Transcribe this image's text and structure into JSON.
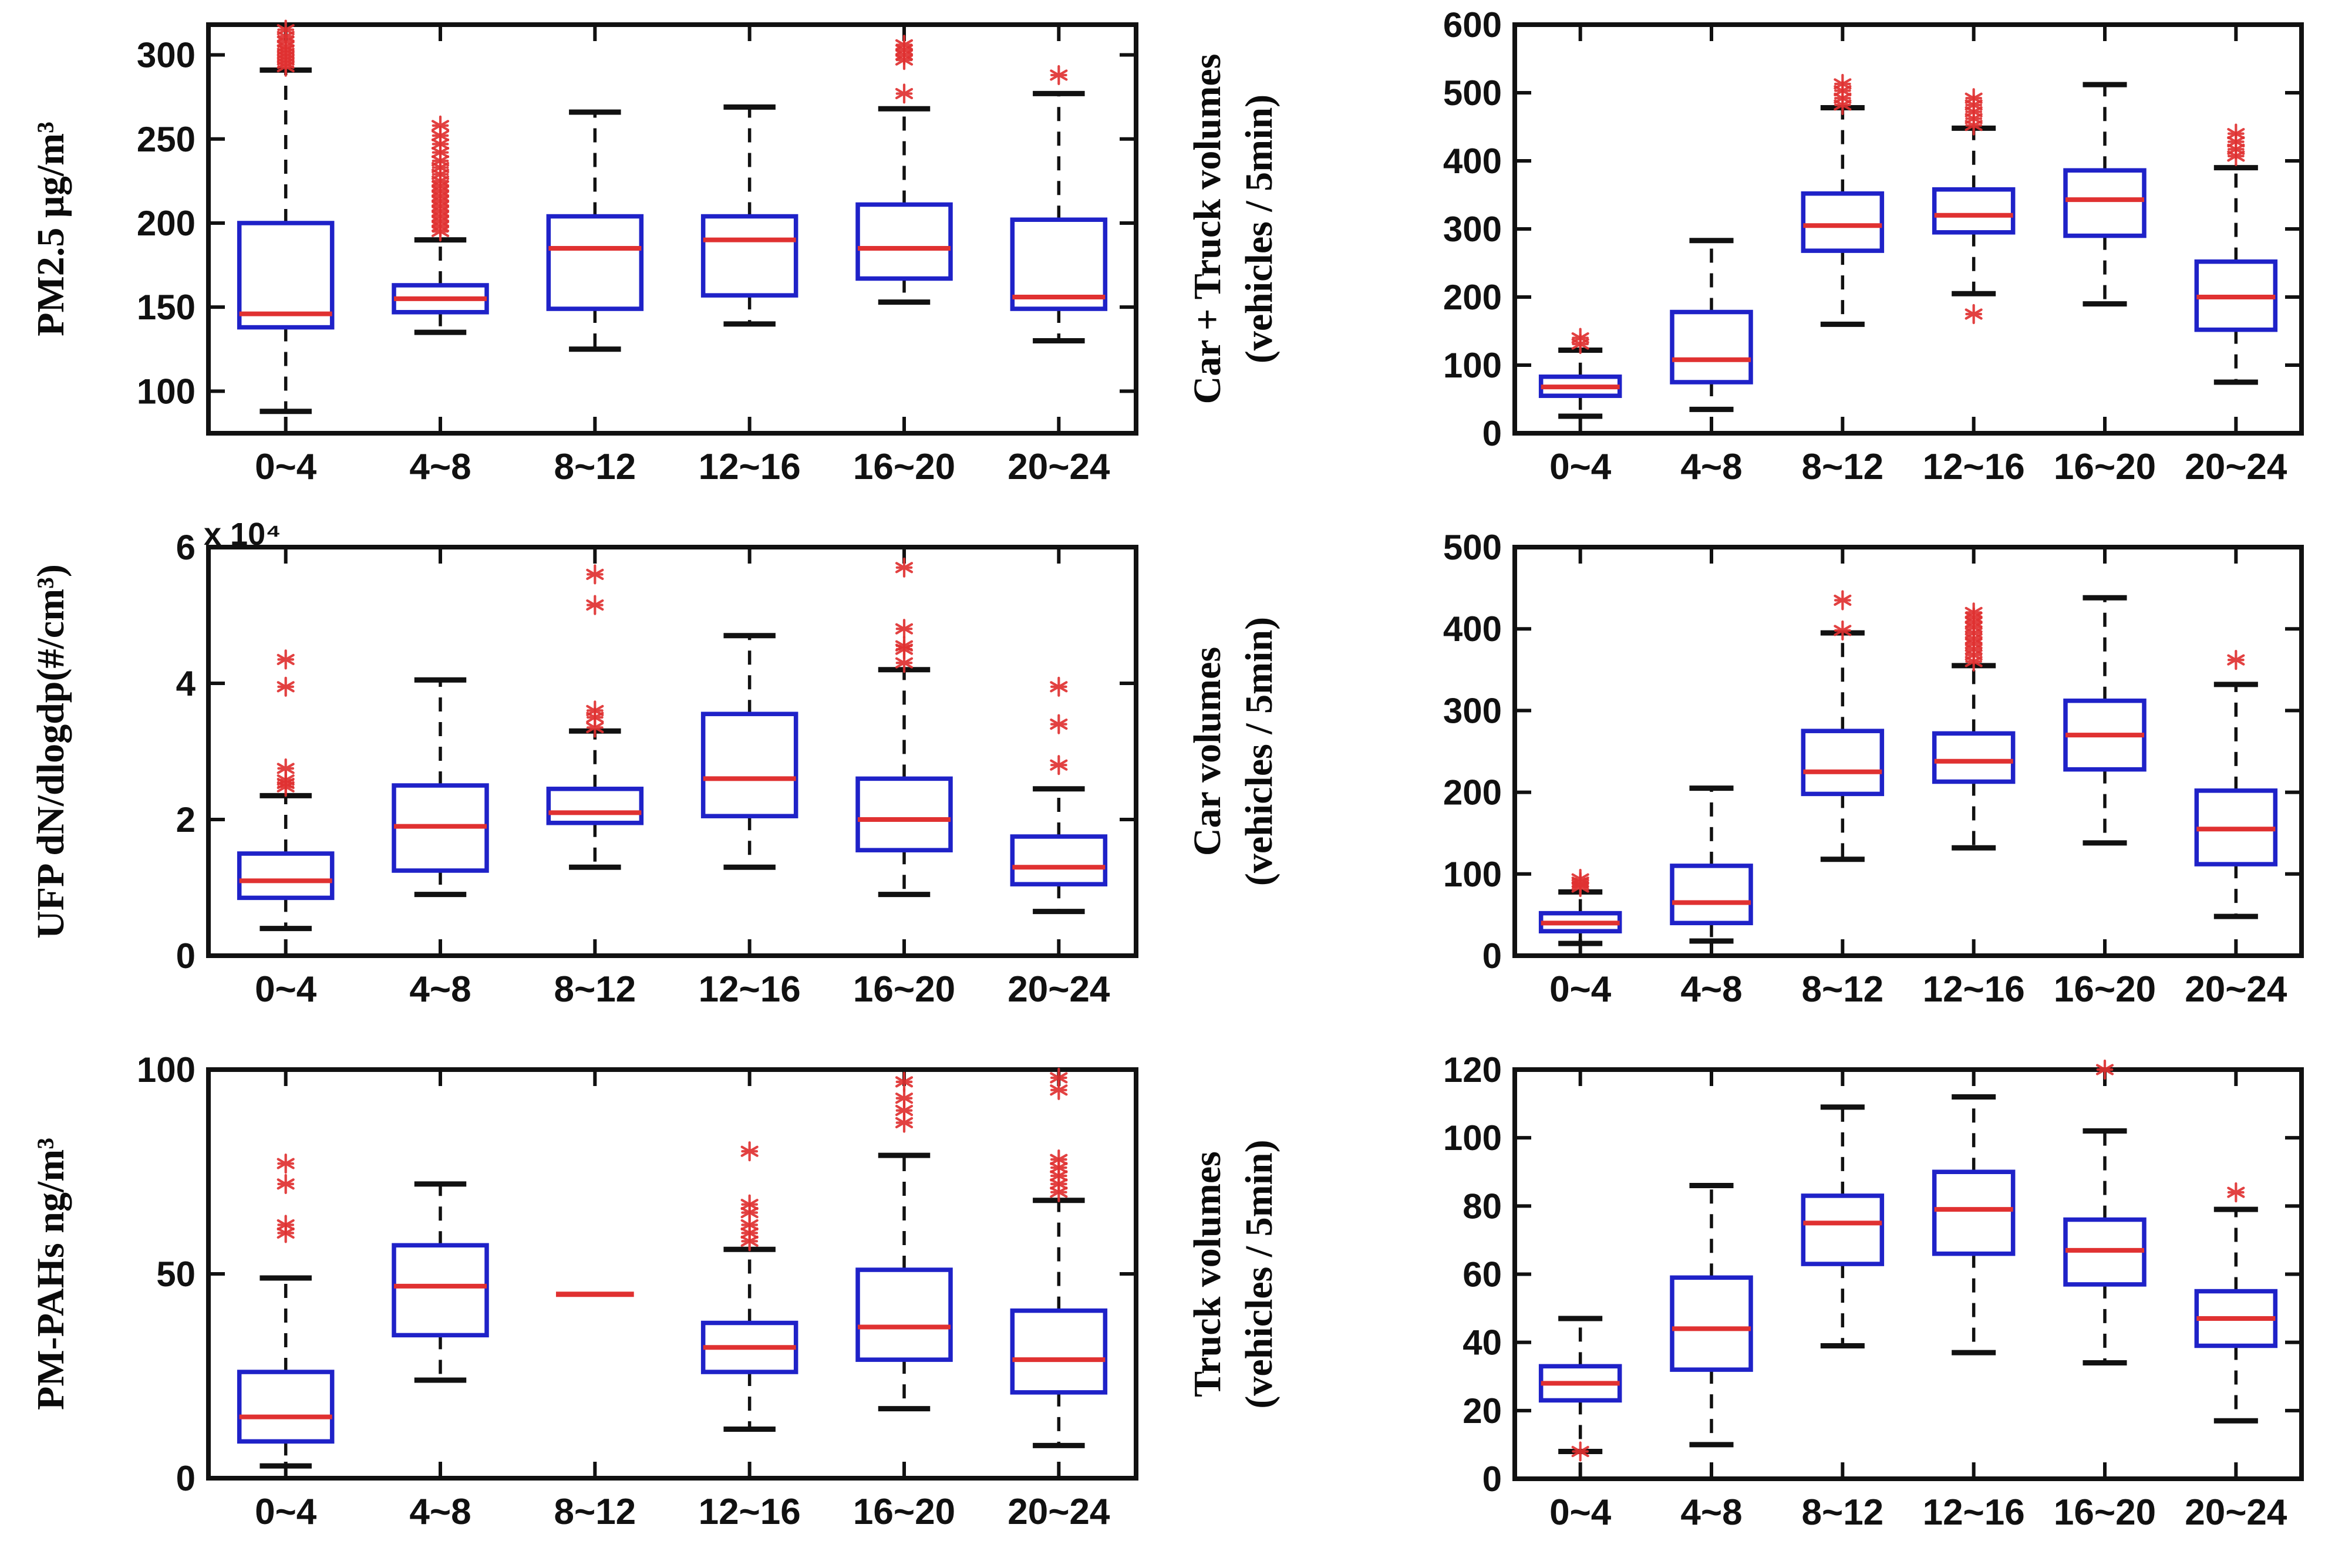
{
  "figure": {
    "kind": "matlab-style boxplot figure, 2 columns x 3 rows",
    "background": "#ffffff"
  },
  "colors": {
    "box_edge": "#1f22c8",
    "median": "#e03131",
    "whisker": "#111111",
    "cap": "#111111",
    "flier": "#e03131",
    "frame": "#111111",
    "tick_text": "#111111"
  },
  "chart_data": [
    {
      "type": "boxplot",
      "position": "row1-left",
      "ylabel_lines": [
        "PM2.5  µg/m³"
      ],
      "categories": [
        "0~4",
        "4~8",
        "8~12",
        "12~16",
        "16~20",
        "20~24"
      ],
      "ylim": [
        75,
        318
      ],
      "yticks": [
        100,
        150,
        200,
        250,
        300
      ],
      "exponent_label": null,
      "boxes": [
        {
          "category": "0~4",
          "whislo": 88,
          "q1": 138,
          "med": 146,
          "q3": 200,
          "whishi": 291,
          "fliers": [
            293,
            295,
            297,
            299,
            301,
            303,
            305,
            308,
            311,
            315
          ]
        },
        {
          "category": "4~8",
          "whislo": 135,
          "q1": 147,
          "med": 155,
          "q3": 163,
          "whishi": 190,
          "fliers": [
            195,
            198,
            201,
            204,
            207,
            210,
            213,
            216,
            219,
            222,
            225,
            229,
            233,
            237,
            242,
            247,
            252,
            258
          ]
        },
        {
          "category": "8~12",
          "whislo": 125,
          "q1": 149,
          "med": 185,
          "q3": 204,
          "whishi": 266,
          "fliers": []
        },
        {
          "category": "12~16",
          "whislo": 140,
          "q1": 157,
          "med": 190,
          "q3": 204,
          "whishi": 269,
          "fliers": []
        },
        {
          "category": "16~20",
          "whislo": 153,
          "q1": 167,
          "med": 185,
          "q3": 211,
          "whishi": 268,
          "fliers": [
            277,
            297,
            300,
            303,
            306
          ]
        },
        {
          "category": "20~24",
          "whislo": 130,
          "q1": 149,
          "med": 156,
          "q3": 202,
          "whishi": 277,
          "fliers": [
            288
          ]
        }
      ]
    },
    {
      "type": "boxplot",
      "position": "row1-right",
      "ylabel_lines": [
        "Car + Truck  volumes",
        "(vehicles / 5min)"
      ],
      "categories": [
        "0~4",
        "4~8",
        "8~12",
        "12~16",
        "16~20",
        "20~24"
      ],
      "ylim": [
        0,
        600
      ],
      "yticks": [
        0,
        100,
        200,
        300,
        400,
        500,
        600
      ],
      "exponent_label": null,
      "boxes": [
        {
          "category": "0~4",
          "whislo": 25,
          "q1": 55,
          "med": 68,
          "q3": 83,
          "whishi": 122,
          "fliers": [
            131,
            140
          ]
        },
        {
          "category": "4~8",
          "whislo": 35,
          "q1": 75,
          "med": 108,
          "q3": 178,
          "whishi": 283,
          "fliers": []
        },
        {
          "category": "8~12",
          "whislo": 160,
          "q1": 268,
          "med": 305,
          "q3": 352,
          "whishi": 478,
          "fliers": [
            482,
            492,
            503,
            513
          ]
        },
        {
          "category": "12~16",
          "whislo": 205,
          "q1": 295,
          "med": 320,
          "q3": 358,
          "whishi": 448,
          "fliers": [
            175,
            452,
            462,
            472,
            482,
            492
          ]
        },
        {
          "category": "16~20",
          "whislo": 190,
          "q1": 290,
          "med": 343,
          "q3": 386,
          "whishi": 512,
          "fliers": []
        },
        {
          "category": "20~24",
          "whislo": 75,
          "q1": 152,
          "med": 200,
          "q3": 252,
          "whishi": 390,
          "fliers": [
            407,
            417,
            428,
            440
          ]
        }
      ]
    },
    {
      "type": "boxplot",
      "position": "row2-left",
      "ylabel_lines": [
        "UFP dN/dlogdp(#/cm³)"
      ],
      "categories": [
        "0~4",
        "4~8",
        "8~12",
        "12~16",
        "16~20",
        "20~24"
      ],
      "ylim": [
        0,
        6
      ],
      "yticks": [
        0,
        2,
        4,
        6
      ],
      "exponent_label": "x 10⁴",
      "boxes": [
        {
          "category": "0~4",
          "whislo": 0.4,
          "q1": 0.85,
          "med": 1.1,
          "q3": 1.5,
          "whishi": 2.35,
          "fliers": [
            2.48,
            2.53,
            2.58,
            2.75,
            3.95,
            4.35
          ]
        },
        {
          "category": "4~8",
          "whislo": 0.9,
          "q1": 1.25,
          "med": 1.9,
          "q3": 2.5,
          "whishi": 4.05,
          "fliers": []
        },
        {
          "category": "8~12",
          "whislo": 1.3,
          "q1": 1.95,
          "med": 2.1,
          "q3": 2.45,
          "whishi": 3.3,
          "fliers": [
            3.35,
            3.5,
            3.6,
            5.15,
            5.6
          ]
        },
        {
          "category": "12~16",
          "whislo": 1.3,
          "q1": 2.05,
          "med": 2.6,
          "q3": 3.55,
          "whishi": 4.7,
          "fliers": []
        },
        {
          "category": "16~20",
          "whislo": 0.9,
          "q1": 1.55,
          "med": 2.0,
          "q3": 2.6,
          "whishi": 4.2,
          "fliers": [
            4.3,
            4.5,
            4.55,
            4.8,
            5.7
          ]
        },
        {
          "category": "20~24",
          "whislo": 0.65,
          "q1": 1.05,
          "med": 1.3,
          "q3": 1.75,
          "whishi": 2.45,
          "fliers": [
            2.8,
            3.4,
            3.95
          ]
        }
      ]
    },
    {
      "type": "boxplot",
      "position": "row2-right",
      "ylabel_lines": [
        "Car  volumes",
        "(vehicles / 5min)"
      ],
      "categories": [
        "0~4",
        "4~8",
        "8~12",
        "12~16",
        "16~20",
        "20~24"
      ],
      "ylim": [
        0,
        500
      ],
      "yticks": [
        0,
        100,
        200,
        300,
        400,
        500
      ],
      "exponent_label": null,
      "boxes": [
        {
          "category": "0~4",
          "whislo": 15,
          "q1": 30,
          "med": 40,
          "q3": 52,
          "whishi": 78,
          "fliers": [
            84,
            87,
            90,
            94
          ]
        },
        {
          "category": "4~8",
          "whislo": 18,
          "q1": 40,
          "med": 65,
          "q3": 110,
          "whishi": 205,
          "fliers": []
        },
        {
          "category": "8~12",
          "whislo": 118,
          "q1": 198,
          "med": 225,
          "q3": 275,
          "whishi": 395,
          "fliers": [
            398,
            435
          ]
        },
        {
          "category": "12~16",
          "whislo": 132,
          "q1": 213,
          "med": 238,
          "q3": 272,
          "whishi": 355,
          "fliers": [
            360,
            368,
            375,
            382,
            388,
            395,
            402,
            408,
            414,
            420
          ]
        },
        {
          "category": "16~20",
          "whislo": 138,
          "q1": 228,
          "med": 270,
          "q3": 312,
          "whishi": 438,
          "fliers": []
        },
        {
          "category": "20~24",
          "whislo": 48,
          "q1": 112,
          "med": 155,
          "q3": 202,
          "whishi": 332,
          "fliers": [
            362
          ]
        }
      ]
    },
    {
      "type": "boxplot",
      "position": "row3-left",
      "ylabel_lines": [
        "PM-PAHs ng/m³"
      ],
      "categories": [
        "0~4",
        "4~8",
        "8~12",
        "12~16",
        "16~20",
        "20~24"
      ],
      "ylim": [
        0,
        100
      ],
      "yticks": [
        0,
        50,
        100
      ],
      "exponent_label": null,
      "boxes": [
        {
          "category": "0~4",
          "whislo": 3,
          "q1": 9,
          "med": 15,
          "q3": 26,
          "whishi": 49,
          "fliers": [
            60,
            62,
            72,
            77
          ]
        },
        {
          "category": "4~8",
          "whislo": 24,
          "q1": 35,
          "med": 47,
          "q3": 57,
          "whishi": 72,
          "fliers": []
        },
        {
          "category": "8~12",
          "single": true,
          "med": 45,
          "fliers": []
        },
        {
          "category": "12~16",
          "whislo": 12,
          "q1": 26,
          "med": 32,
          "q3": 38,
          "whishi": 56,
          "fliers": [
            58,
            60,
            62,
            65,
            67,
            80
          ]
        },
        {
          "category": "16~20",
          "whislo": 17,
          "q1": 29,
          "med": 37,
          "q3": 51,
          "whishi": 79,
          "fliers": [
            87,
            90,
            93,
            97
          ]
        },
        {
          "category": "20~24",
          "whislo": 8,
          "q1": 21,
          "med": 29,
          "q3": 41,
          "whishi": 68,
          "fliers": [
            70,
            72,
            74,
            76,
            78,
            95,
            98
          ]
        }
      ]
    },
    {
      "type": "boxplot",
      "position": "row3-right",
      "ylabel_lines": [
        "Truck volumes",
        "(vehicles / 5min)"
      ],
      "categories": [
        "0~4",
        "4~8",
        "8~12",
        "12~16",
        "16~20",
        "20~24"
      ],
      "ylim": [
        0,
        120
      ],
      "yticks": [
        0,
        20,
        40,
        60,
        80,
        100,
        120
      ],
      "exponent_label": null,
      "boxes": [
        {
          "category": "0~4",
          "whislo": 8,
          "q1": 23,
          "med": 28,
          "q3": 33,
          "whishi": 47,
          "fliers": [
            8
          ]
        },
        {
          "category": "4~8",
          "whislo": 10,
          "q1": 32,
          "med": 44,
          "q3": 59,
          "whishi": 86,
          "fliers": []
        },
        {
          "category": "8~12",
          "whislo": 39,
          "q1": 63,
          "med": 75,
          "q3": 83,
          "whishi": 109,
          "fliers": []
        },
        {
          "category": "12~16",
          "whislo": 37,
          "q1": 66,
          "med": 79,
          "q3": 90,
          "whishi": 112,
          "fliers": []
        },
        {
          "category": "16~20",
          "whislo": 34,
          "q1": 57,
          "med": 67,
          "q3": 76,
          "whishi": 102,
          "fliers": [
            120
          ]
        },
        {
          "category": "20~24",
          "whislo": 17,
          "q1": 39,
          "med": 47,
          "q3": 55,
          "whishi": 79,
          "fliers": [
            84
          ]
        }
      ]
    }
  ]
}
